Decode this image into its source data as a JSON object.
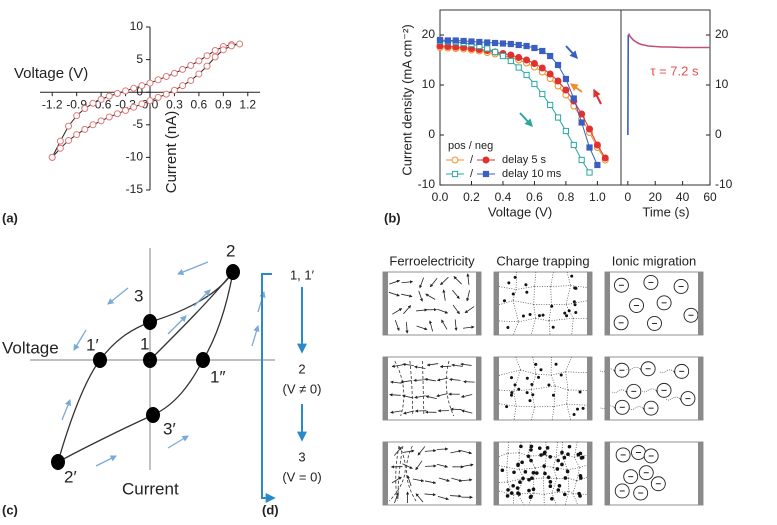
{
  "panel_labels": [
    "(a)",
    "(b)",
    "(c)",
    "(d)"
  ],
  "chart_data": [
    {
      "type": "line",
      "x_label": "Voltage (V)",
      "y_label": "Current (nA)",
      "x": [
        -1.2,
        -1.1,
        -1,
        -0.9,
        -0.8,
        -0.7,
        -0.6,
        -0.5,
        -0.4,
        -0.3,
        -0.2,
        -0.1,
        0,
        0.1,
        0.2,
        0.3,
        0.4,
        0.5,
        0.6,
        0.7,
        0.8,
        0.9,
        1,
        1.1,
        1,
        0.9,
        0.8,
        0.7,
        0.6,
        0.5,
        0.4,
        0.3,
        0.2,
        0.1,
        0,
        -0.1,
        -0.2,
        -0.3,
        -0.4,
        -0.5,
        -0.6,
        -0.7,
        -0.8,
        -0.9,
        -1,
        -1.1,
        -1.2
      ],
      "values": [
        -10,
        -7.5,
        -5.2,
        -3.6,
        -2.5,
        -1.7,
        -1.1,
        -0.6,
        -0.2,
        0.2,
        0.6,
        1,
        1.4,
        1.9,
        2.4,
        2.9,
        3.5,
        4.1,
        4.8,
        5.6,
        6.4,
        7,
        7.3,
        7.4,
        7.1,
        6.5,
        5.4,
        4,
        2.8,
        1.8,
        1,
        0.3,
        -0.3,
        -0.8,
        -1.3,
        -1.8,
        -2.3,
        -2.8,
        -3.3,
        -3.8,
        -4.4,
        -5,
        -5.7,
        -6.5,
        -7.4,
        -8.6,
        -10
      ],
      "color": "#222222",
      "marker": "circle",
      "filled": false,
      "marker_color": "#e07878",
      "xlim": [
        -1.35,
        1.35
      ],
      "ylim": [
        -15,
        10
      ],
      "xticks": [
        -1.2,
        -0.9,
        -0.6,
        -0.3,
        {
          "value": 0,
          "label": "0.0"
        },
        0.3,
        0.6,
        0.9,
        1.2
      ],
      "yticks": [
        -15,
        -10,
        -5,
        0,
        5,
        10
      ]
    },
    {
      "type": "line",
      "x_label": "Voltage (V)",
      "y_label": "Current density (mA cm⁻²)",
      "legend_title": "pos / neg",
      "legend_separator": "/",
      "xlim": [
        0,
        1.15
      ],
      "ylim": [
        -10,
        25
      ],
      "xticks": [
        {
          "value": 0,
          "label": "0.0"
        },
        0.2,
        0.4,
        0.6,
        0.8,
        {
          "value": 1,
          "label": "1.0"
        }
      ],
      "yticks": [
        -10,
        0,
        10,
        20
      ],
      "series": [
        {
          "color": "#f0902a",
          "marker": "circle",
          "filled": false,
          "x": [
            0,
            0.05,
            0.1,
            0.15,
            0.2,
            0.25,
            0.3,
            0.35,
            0.4,
            0.45,
            0.5,
            0.55,
            0.6,
            0.65,
            0.7,
            0.75,
            0.8,
            0.85,
            0.9,
            0.95,
            1,
            1.05
          ],
          "values": [
            17.5,
            17.4,
            17.3,
            17.2,
            17,
            16.8,
            16.5,
            16.2,
            15.9,
            15.5,
            15,
            14.4,
            13.6,
            12.6,
            11.3,
            9.8,
            8,
            5.8,
            3.3,
            0.5,
            -2.5,
            -5
          ]
        },
        {
          "name": "delay 5 s",
          "color": "#e03030",
          "marker": "circle",
          "filled": true,
          "x": [
            0,
            0.05,
            0.1,
            0.15,
            0.2,
            0.25,
            0.3,
            0.35,
            0.4,
            0.45,
            0.5,
            0.55,
            0.6,
            0.65,
            0.7,
            0.75,
            0.8,
            0.85,
            0.9,
            0.95,
            1,
            1.05
          ],
          "values": [
            17.8,
            17.7,
            17.6,
            17.5,
            17.3,
            17.1,
            16.9,
            16.6,
            16.3,
            16,
            15.5,
            15,
            14.3,
            13.4,
            12.2,
            10.8,
            9,
            6.8,
            4.2,
            1.2,
            -2,
            -4.6
          ]
        },
        {
          "color": "#2aa8a0",
          "marker": "square",
          "filled": false,
          "x": [
            0,
            0.05,
            0.1,
            0.15,
            0.2,
            0.25,
            0.3,
            0.35,
            0.4,
            0.45,
            0.5,
            0.55,
            0.6,
            0.65,
            0.7,
            0.75,
            0.8,
            0.85,
            0.9,
            0.95
          ],
          "values": [
            18.8,
            18.7,
            18.6,
            18.4,
            18.2,
            17.8,
            17.3,
            16.6,
            15.8,
            14.8,
            13.5,
            12,
            10.2,
            8.2,
            6,
            3.5,
            0.8,
            -2,
            -5,
            -7.5
          ]
        },
        {
          "name": "delay 10 ms",
          "color": "#3a5fc0",
          "marker": "square",
          "filled": true,
          "x": [
            0,
            0.05,
            0.1,
            0.15,
            0.2,
            0.25,
            0.3,
            0.35,
            0.4,
            0.45,
            0.5,
            0.55,
            0.6,
            0.65,
            0.7,
            0.75,
            0.8,
            0.85,
            0.9,
            0.95,
            1
          ],
          "values": [
            19,
            18.9,
            18.9,
            18.8,
            18.7,
            18.6,
            18.5,
            18.4,
            18.3,
            18.2,
            18,
            17.8,
            17.4,
            16.8,
            15.8,
            14,
            11.2,
            7.3,
            2.5,
            -2.5,
            -6
          ]
        }
      ]
    },
    {
      "type": "line",
      "x_label": "Time (s)",
      "annotation": "τ = 7.2 s",
      "annotation_color": "#e05050",
      "xlim": [
        -5,
        60
      ],
      "ylim": [
        -10,
        25
      ],
      "xticks": [
        0,
        20,
        40,
        60
      ],
      "yticks": [
        -10,
        0,
        10,
        20
      ],
      "series": [
        {
          "color": "#3a5fc0",
          "x": [
            0,
            0.3
          ],
          "values": [
            0,
            20
          ]
        },
        {
          "color": "#c0507a",
          "x": [
            0.5,
            1,
            2,
            3,
            4,
            6,
            8,
            10,
            15,
            20,
            25,
            30,
            40,
            50,
            60
          ],
          "values": [
            20.3,
            20,
            19.6,
            19.3,
            19,
            18.6,
            18.3,
            18.1,
            17.8,
            17.7,
            17.6,
            17.6,
            17.5,
            17.5,
            17.5
          ]
        }
      ]
    }
  ],
  "diagram_c": {
    "x_axis_label": "Voltage",
    "y_axis_label": "Current",
    "nodes": [
      {
        "label": "1′"
      },
      {
        "label": "1"
      },
      {
        "label": "1″"
      },
      {
        "label": "2"
      },
      {
        "label": "2′"
      },
      {
        "label": "3"
      },
      {
        "label": "3′"
      }
    ]
  },
  "diagram_d": {
    "columns": [
      "Ferroelectricity",
      "Charge trapping",
      "Ionic migration"
    ],
    "steps": [
      {
        "label": "1, 1′"
      },
      {
        "label": "2",
        "condition": "(V ≠ 0)"
      },
      {
        "label": "3",
        "condition": "(V = 0)"
      }
    ]
  }
}
